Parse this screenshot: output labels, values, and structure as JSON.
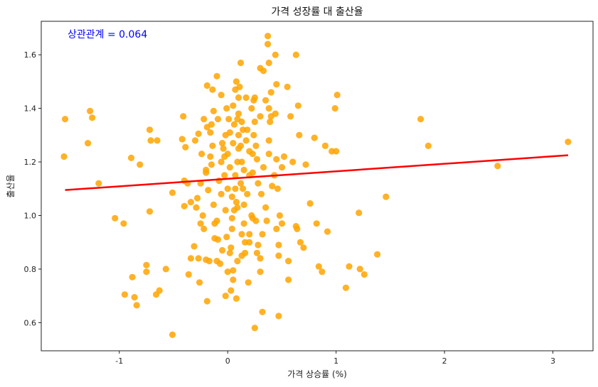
{
  "chart_data": {
    "type": "scatter",
    "title": "가격 성장률 대 출산율",
    "xlabel": "가격 상승률 (%)",
    "ylabel": "출산율",
    "annotation": "상관관계 = 0.064",
    "xlim": [
      -1.72,
      3.37
    ],
    "ylim": [
      0.495,
      1.725
    ],
    "xticks": [
      -1,
      0,
      1,
      2,
      3
    ],
    "yticks": [
      0.6,
      0.8,
      1.0,
      1.2,
      1.4,
      1.6
    ],
    "xtick_labels": [
      "-1",
      "0",
      "1",
      "2",
      "3"
    ],
    "ytick_labels": [
      "0.6",
      "0.8",
      "1.0",
      "1.2",
      "1.4",
      "1.6"
    ],
    "grid": false,
    "point_color": "#ffa500",
    "line_color": "#ff0000",
    "annotation_color": "#0000ff",
    "regression_line": {
      "x": [
        -1.5,
        3.14
      ],
      "y": [
        1.095,
        1.225
      ]
    },
    "points": [
      [
        -1.5,
        1.36
      ],
      [
        -1.51,
        1.22
      ],
      [
        -1.27,
        1.39
      ],
      [
        -1.25,
        1.365
      ],
      [
        -1.29,
        1.27
      ],
      [
        -1.19,
        1.12
      ],
      [
        -1.04,
        0.99
      ],
      [
        -0.96,
        0.97
      ],
      [
        -0.89,
        1.215
      ],
      [
        -0.81,
        1.19
      ],
      [
        -0.72,
        1.32
      ],
      [
        -0.71,
        1.28
      ],
      [
        -0.65,
        1.28
      ],
      [
        -0.72,
        1.015
      ],
      [
        -0.95,
        0.705
      ],
      [
        -0.88,
        0.77
      ],
      [
        -0.86,
        0.695
      ],
      [
        -0.84,
        0.665
      ],
      [
        -0.75,
        0.815
      ],
      [
        -0.75,
        0.79
      ],
      [
        -0.66,
        0.705
      ],
      [
        -0.63,
        0.72
      ],
      [
        -0.57,
        0.8
      ],
      [
        -0.51,
        1.085
      ],
      [
        -0.51,
        0.555
      ],
      [
        -0.42,
        1.285
      ],
      [
        -0.41,
        1.37
      ],
      [
        -0.39,
        1.255
      ],
      [
        -0.4,
        1.13
      ],
      [
        -0.37,
        1.12
      ],
      [
        -0.4,
        1.035
      ],
      [
        -0.34,
        1.05
      ],
      [
        -0.36,
        0.78
      ],
      [
        -0.34,
        0.84
      ],
      [
        -0.31,
        0.885
      ],
      [
        -0.26,
        0.75
      ],
      [
        -0.27,
        0.84
      ],
      [
        -0.25,
        0.97
      ],
      [
        -0.29,
        1.03
      ],
      [
        -0.28,
        1.065
      ],
      [
        -0.3,
        1.28
      ],
      [
        -0.27,
        1.305
      ],
      [
        -0.24,
        1.23
      ],
      [
        -0.22,
        1.36
      ],
      [
        -0.19,
        1.485
      ],
      [
        -0.14,
        1.47
      ],
      [
        -0.1,
        1.52
      ],
      [
        -0.06,
        1.45
      ],
      [
        -0.19,
        1.33
      ],
      [
        -0.15,
        1.34
      ],
      [
        -0.13,
        1.39
      ],
      [
        -0.2,
        1.17
      ],
      [
        -0.18,
        1.095
      ],
      [
        -0.2,
        1.16
      ],
      [
        -0.16,
        1.22
      ],
      [
        -0.14,
        1.26
      ],
      [
        -0.19,
        0.68
      ],
      [
        -0.2,
        0.835
      ],
      [
        -0.17,
        0.83
      ],
      [
        -0.12,
        0.915
      ],
      [
        -0.09,
        0.91
      ],
      [
        -0.1,
        0.83
      ],
      [
        -0.07,
        0.82
      ],
      [
        -0.12,
        0.97
      ],
      [
        -0.1,
        0.98
      ],
      [
        -0.06,
        1.08
      ],
      [
        -0.06,
        1.2
      ],
      [
        -0.04,
        1.25
      ],
      [
        -0.02,
        1.3
      ],
      [
        -0.01,
        1.4
      ],
      [
        -0.02,
        1.02
      ],
      [
        -0.02,
        0.7
      ],
      [
        0.0,
        0.79
      ],
      [
        0.02,
        0.86
      ],
      [
        0.03,
        0.88
      ],
      [
        0.03,
        0.72
      ],
      [
        0.05,
        0.76
      ],
      [
        0.05,
        0.795
      ],
      [
        0.04,
        0.99
      ],
      [
        0.06,
        1.02
      ],
      [
        0.08,
        1.05
      ],
      [
        0.07,
        1.1
      ],
      [
        0.07,
        1.15
      ],
      [
        0.09,
        1.2
      ],
      [
        0.1,
        1.25
      ],
      [
        0.1,
        1.3
      ],
      [
        0.1,
        1.38
      ],
      [
        0.1,
        1.44
      ],
      [
        0.08,
        1.5
      ],
      [
        0.11,
        1.48
      ],
      [
        0.13,
        1.35
      ],
      [
        0.13,
        1.2
      ],
      [
        0.15,
        1.17
      ],
      [
        0.14,
        1.1
      ],
      [
        0.15,
        1.04
      ],
      [
        0.15,
        0.97
      ],
      [
        0.16,
        0.9
      ],
      [
        0.16,
        0.86
      ],
      [
        0.2,
        0.9
      ],
      [
        0.2,
        0.93
      ],
      [
        0.22,
        1.0
      ],
      [
        0.23,
        0.99
      ],
      [
        0.23,
        1.16
      ],
      [
        0.23,
        1.23
      ],
      [
        0.24,
        1.3
      ],
      [
        0.24,
        1.43
      ],
      [
        0.25,
        1.44
      ],
      [
        0.25,
        1.35
      ],
      [
        0.3,
        1.37
      ],
      [
        0.3,
        1.55
      ],
      [
        0.26,
        0.98
      ],
      [
        0.27,
        0.86
      ],
      [
        0.3,
        0.79
      ],
      [
        0.3,
        0.84
      ],
      [
        0.25,
        0.58
      ],
      [
        0.32,
        0.64
      ],
      [
        0.36,
        0.98
      ],
      [
        0.38,
        1.23
      ],
      [
        0.38,
        1.28
      ],
      [
        0.39,
        1.35
      ],
      [
        0.38,
        1.4
      ],
      [
        0.4,
        1.37
      ],
      [
        0.4,
        1.46
      ],
      [
        0.38,
        1.57
      ],
      [
        0.37,
        1.64
      ],
      [
        0.37,
        1.67
      ],
      [
        0.44,
        1.6
      ],
      [
        0.45,
        1.49
      ],
      [
        0.44,
        1.38
      ],
      [
        0.45,
        1.21
      ],
      [
        0.46,
        1.1
      ],
      [
        0.47,
        0.85
      ],
      [
        0.47,
        0.89
      ],
      [
        0.45,
        0.95
      ],
      [
        0.48,
        1.0
      ],
      [
        0.5,
        0.97
      ],
      [
        0.5,
        1.18
      ],
      [
        0.52,
        1.22
      ],
      [
        0.47,
        0.625
      ],
      [
        0.56,
        0.76
      ],
      [
        0.56,
        0.83
      ],
      [
        0.55,
        1.48
      ],
      [
        0.58,
        1.37
      ],
      [
        0.6,
        1.2
      ],
      [
        0.63,
        1.6
      ],
      [
        0.63,
        0.96
      ],
      [
        0.64,
        0.95
      ],
      [
        0.65,
        1.41
      ],
      [
        0.66,
        1.3
      ],
      [
        0.67,
        0.9
      ],
      [
        0.7,
        0.88
      ],
      [
        0.72,
        1.19
      ],
      [
        0.76,
        1.045
      ],
      [
        0.8,
        1.29
      ],
      [
        0.82,
        0.97
      ],
      [
        0.84,
        0.81
      ],
      [
        0.87,
        0.79
      ],
      [
        0.9,
        1.26
      ],
      [
        0.92,
        0.94
      ],
      [
        0.96,
        1.24
      ],
      [
        0.99,
        1.4
      ],
      [
        1.0,
        1.24
      ],
      [
        1.01,
        1.45
      ],
      [
        1.09,
        0.73
      ],
      [
        1.12,
        0.81
      ],
      [
        1.21,
        1.01
      ],
      [
        1.22,
        0.8
      ],
      [
        1.26,
        0.78
      ],
      [
        1.38,
        0.855
      ],
      [
        1.46,
        1.07
      ],
      [
        1.78,
        1.36
      ],
      [
        1.85,
        1.26
      ],
      [
        2.49,
        1.185
      ],
      [
        3.14,
        1.275
      ],
      [
        -0.05,
        1.27
      ],
      [
        0.0,
        1.23
      ],
      [
        0.02,
        1.31
      ],
      [
        0.05,
        1.27
      ],
      [
        0.06,
        1.34
      ],
      [
        0.12,
        1.26
      ],
      [
        0.14,
        1.32
      ],
      [
        0.17,
        1.28
      ],
      [
        0.2,
        1.24
      ],
      [
        0.02,
        1.18
      ],
      [
        -0.03,
        1.15
      ],
      [
        0.0,
        1.1
      ],
      [
        0.04,
        1.07
      ],
      [
        0.09,
        1.03
      ],
      [
        0.12,
        1.12
      ],
      [
        0.18,
        1.08
      ],
      [
        0.2,
        1.15
      ],
      [
        0.27,
        1.21
      ],
      [
        0.28,
        1.12
      ],
      [
        0.33,
        1.18
      ],
      [
        0.35,
        1.03
      ],
      [
        0.32,
        0.93
      ],
      [
        0.04,
        0.95
      ],
      [
        -0.01,
        0.92
      ],
      [
        -0.05,
        0.87
      ],
      [
        0.09,
        0.83
      ],
      [
        0.13,
        0.93
      ],
      [
        0.18,
        1.32
      ],
      [
        0.22,
        1.4
      ],
      [
        0.35,
        1.43
      ],
      [
        0.12,
        1.57
      ],
      [
        -0.25,
        1.12
      ],
      [
        -0.23,
        1.0
      ],
      [
        -0.13,
        1.04
      ],
      [
        -0.08,
        1.13
      ],
      [
        0.05,
        1.41
      ],
      [
        0.33,
        1.54
      ],
      [
        -0.15,
        1.19
      ],
      [
        0.07,
        1.47
      ],
      [
        0.17,
        1.44
      ],
      [
        0.28,
        0.89
      ],
      [
        -0.22,
        0.95
      ],
      [
        0.41,
        1.11
      ],
      [
        0.43,
        1.15
      ],
      [
        0.13,
        0.85
      ],
      [
        0.08,
        0.69
      ],
      [
        0.19,
        0.75
      ],
      [
        0.09,
        1.36
      ],
      [
        0.01,
        1.36
      ],
      [
        -0.09,
        1.36
      ],
      [
        -0.16,
        1.31
      ],
      [
        -0.03,
        1.22
      ],
      [
        0.26,
        1.26
      ],
      [
        0.31,
        1.08
      ]
    ]
  }
}
